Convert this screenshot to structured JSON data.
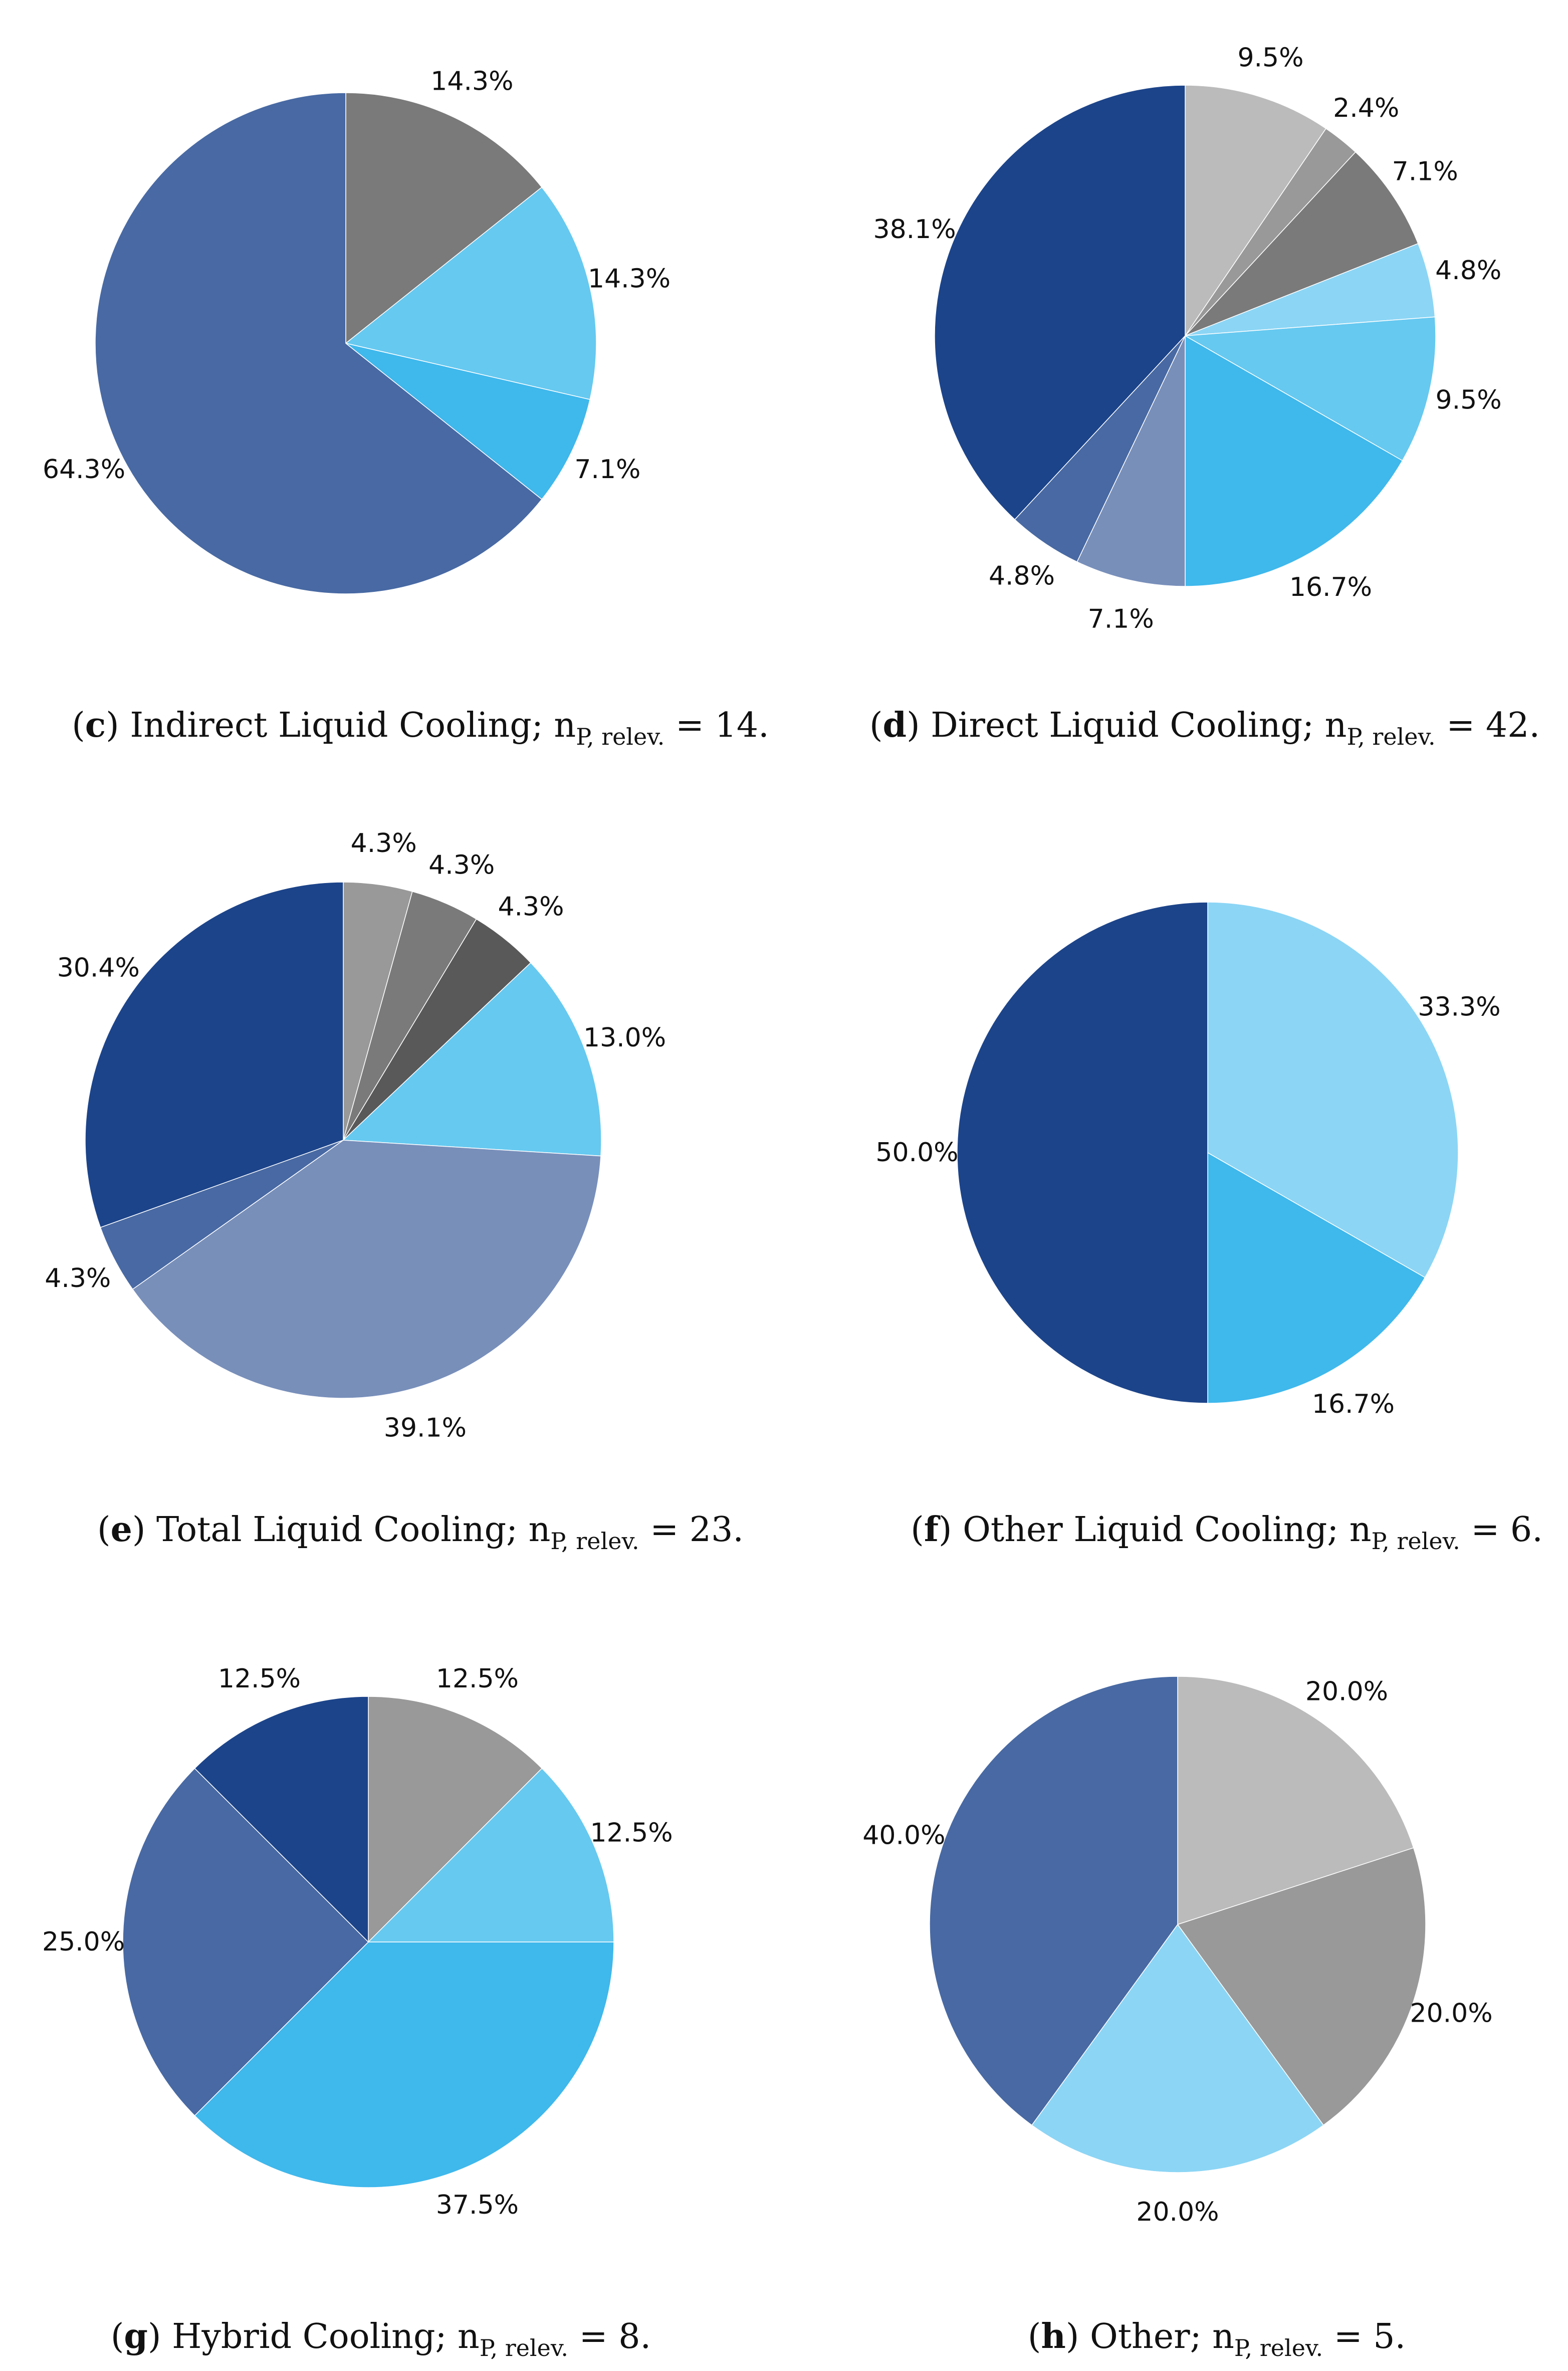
{
  "chart_data": [
    {
      "type": "pie",
      "caption": {
        "letter": "c",
        "text": "Indirect Liquid Cooling; n",
        "sub": "P, relev.",
        "tail": " = 14."
      },
      "slices": [
        {
          "value": 14.3,
          "label": "14.3%",
          "color": "#7a7a7a"
        },
        {
          "value": 14.3,
          "label": "14.3%",
          "color": "#66c9f0"
        },
        {
          "value": 7.1,
          "label": "7.1%",
          "color": "#3fb8ec"
        },
        {
          "value": 64.3,
          "label": "64.3%",
          "color": "#4869a3"
        }
      ]
    },
    {
      "type": "pie",
      "caption": {
        "letter": "d",
        "text": "Direct Liquid Cooling; n",
        "sub": "P, relev.",
        "tail": " = 42."
      },
      "slices": [
        {
          "value": 9.5,
          "label": "9.5%",
          "color": "#bbbbbb"
        },
        {
          "value": 2.4,
          "label": "2.4%",
          "color": "#999999"
        },
        {
          "value": 7.1,
          "label": "7.1%",
          "color": "#7a7a7a"
        },
        {
          "value": 4.8,
          "label": "4.8%",
          "color": "#8cd5f5"
        },
        {
          "value": 9.5,
          "label": "9.5%",
          "color": "#66c9f0"
        },
        {
          "value": 16.7,
          "label": "16.7%",
          "color": "#3fb8ec"
        },
        {
          "value": 7.1,
          "label": "7.1%",
          "color": "#788fba"
        },
        {
          "value": 4.8,
          "label": "4.8%",
          "color": "#4869a3"
        },
        {
          "value": 38.1,
          "label": "38.1%",
          "color": "#1c448a"
        }
      ]
    },
    {
      "type": "pie",
      "caption": {
        "letter": "e",
        "text": "Total Liquid Cooling; n",
        "sub": "P, relev.",
        "tail": " = 23."
      },
      "slices": [
        {
          "value": 4.3,
          "label": "4.3%",
          "color": "#999999"
        },
        {
          "value": 4.3,
          "label": "4.3%",
          "color": "#7a7a7a"
        },
        {
          "value": 4.3,
          "label": "4.3%",
          "color": "#595959"
        },
        {
          "value": 13.0,
          "label": "13.0%",
          "color": "#66c9f0"
        },
        {
          "value": 39.1,
          "label": "39.1%",
          "color": "#788fba"
        },
        {
          "value": 4.3,
          "label": "4.3%",
          "color": "#4869a3"
        },
        {
          "value": 30.4,
          "label": "30.4%",
          "color": "#1c448a"
        }
      ]
    },
    {
      "type": "pie",
      "caption": {
        "letter": "f",
        "text": "Other Liquid Cooling; n",
        "sub": "P, relev.",
        "tail": " = 6."
      },
      "slices": [
        {
          "value": 33.3,
          "label": "33.3%",
          "color": "#8cd5f5"
        },
        {
          "value": 16.7,
          "label": "16.7%",
          "color": "#3fb8ec"
        },
        {
          "value": 50.0,
          "label": "50.0%",
          "color": "#1c448a"
        }
      ]
    },
    {
      "type": "pie",
      "caption": {
        "letter": "g",
        "text": "Hybrid Cooling; n",
        "sub": "P, relev.",
        "tail": " = 8."
      },
      "slices": [
        {
          "value": 12.5,
          "label": "12.5%",
          "color": "#999999"
        },
        {
          "value": 12.5,
          "label": "12.5%",
          "color": "#66c9f0"
        },
        {
          "value": 37.5,
          "label": "37.5%",
          "color": "#3fb8ec"
        },
        {
          "value": 25.0,
          "label": "25.0%",
          "color": "#4869a3"
        },
        {
          "value": 12.5,
          "label": "12.5%",
          "color": "#1c448a"
        }
      ]
    },
    {
      "type": "pie",
      "caption": {
        "letter": "h",
        "text": "Other; n",
        "sub": "P, relev.",
        "tail": " = 5."
      },
      "slices": [
        {
          "value": 20.0,
          "label": "20.0%",
          "color": "#bbbbbb"
        },
        {
          "value": 20.0,
          "label": "20.0%",
          "color": "#999999"
        },
        {
          "value": 20.0,
          "label": "20.0%",
          "color": "#8cd5f5"
        },
        {
          "value": 40.0,
          "label": "40.0%",
          "color": "#4869a3"
        }
      ]
    }
  ]
}
